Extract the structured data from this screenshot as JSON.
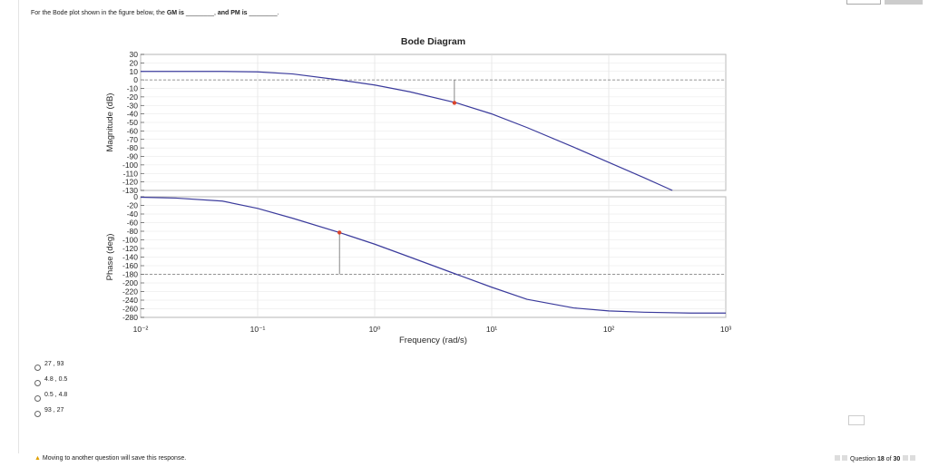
{
  "question": [
    "For the Bode plot shown in the figure below, the ",
    "GM is",
    " ________, ",
    "and PM is",
    " ________."
  ],
  "options": [
    "27 , 93",
    "4.8 , 0.5",
    "0.5 , 4.8",
    "93 , 27"
  ],
  "warning": "Moving to another question will save this response.",
  "progress": [
    "Question ",
    "18",
    " of ",
    "30"
  ],
  "chart_data": [
    {
      "type": "line",
      "title": "Bode Diagram",
      "ylabel": "Magnitude (dB)",
      "xscale": "log",
      "grid": true,
      "x": [
        0.01,
        0.02,
        0.05,
        0.1,
        0.2,
        0.5,
        1,
        2,
        5,
        10,
        20,
        50,
        100,
        200,
        350
      ],
      "values": [
        10,
        10,
        10,
        9.5,
        7,
        0,
        -6,
        -14,
        -27,
        -40,
        -56,
        -79,
        -97,
        -115,
        -130
      ],
      "color": "#3b3b9c",
      "ylim": [
        -130,
        30
      ],
      "yticks": [
        30,
        20,
        10,
        0,
        -10,
        -20,
        -30,
        -40,
        -50,
        -60,
        -70,
        -80,
        -90,
        -100,
        -110,
        -120,
        -130
      ],
      "hline": 0,
      "points": [
        {
          "x": 4.8,
          "y": -27
        }
      ],
      "point_color": "#d9432a"
    },
    {
      "type": "line",
      "ylabel": "Phase (deg)",
      "xlabel": "Frequency  (rad/s)",
      "xscale": "log",
      "grid": true,
      "x": [
        0.01,
        0.02,
        0.05,
        0.1,
        0.2,
        0.5,
        1,
        2,
        5,
        10,
        20,
        50,
        100,
        200,
        500,
        1000
      ],
      "values": [
        -1,
        -3,
        -10,
        -27,
        -50,
        -83,
        -110,
        -140,
        -180,
        -210,
        -238,
        -258,
        -265,
        -268,
        -270,
        -270
      ],
      "color": "#3b3b9c",
      "xlim": [
        0.01,
        1000
      ],
      "xticks": [
        {
          "value": 0.01,
          "label": "10⁻²"
        },
        {
          "value": 0.1,
          "label": "10⁻¹"
        },
        {
          "value": 1,
          "label": "10⁰"
        },
        {
          "value": 10,
          "label": "10¹"
        },
        {
          "value": 100,
          "label": "10²"
        },
        {
          "value": 1000,
          "label": "10³"
        }
      ],
      "ylim": [
        -280,
        0
      ],
      "yticks": [
        0,
        -20,
        -40,
        -60,
        -80,
        -100,
        -120,
        -140,
        -160,
        -180,
        -200,
        -220,
        -240,
        -260,
        -280
      ],
      "hline": -180,
      "points": [
        {
          "x": 0.5,
          "y": -83
        }
      ],
      "point_color": "#d9432a"
    }
  ]
}
